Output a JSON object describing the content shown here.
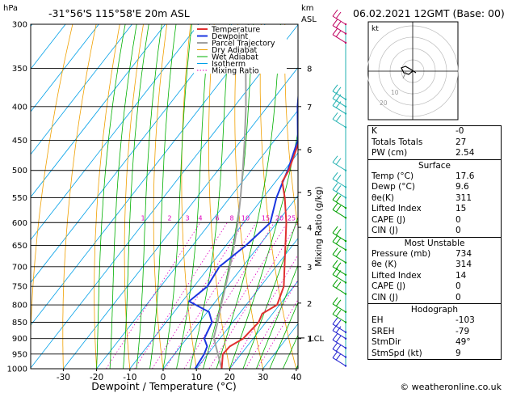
{
  "header": {
    "location": "-31°56'S  115°58'E  20m  ASL",
    "datetime": "06.02.2021  12GMT  (Base: 00)",
    "hpa_label": "hPa",
    "km_label": "km",
    "asl_label": "ASL",
    "copyright": "© weatheronline.co.uk"
  },
  "legend": [
    "Temperature",
    "Dewpoint",
    "Parcel Trajectory",
    "Dry Adiabat",
    "Wet Adiabat",
    "Isotherm",
    "Mixing Ratio"
  ],
  "colors": {
    "temperature": "#e03030",
    "dewpoint": "#1a36e0",
    "parcel": "#a0a0a0",
    "dry_adiabat": "#f0a000",
    "wet_adiabat": "#00b000",
    "isotherm": "#00a0e8",
    "mixing_ratio": "#e000c0",
    "barbs_upper": "#c00060",
    "barbs_mid": "#20b0b0",
    "barbs_low": "#00a000",
    "barbs_lowest": "#2020d0"
  },
  "chart_data": {
    "type": "line",
    "subtype": "skew-t log-p",
    "xlabel": "Dewpoint / Temperature (°C)",
    "ylabel_right": "Mixing Ratio (g/kg)",
    "x_ticks": [
      -30,
      -20,
      -10,
      0,
      10,
      20,
      30,
      40
    ],
    "pressure_levels": [
      300,
      350,
      400,
      450,
      500,
      550,
      600,
      650,
      700,
      750,
      800,
      850,
      900,
      950,
      1000
    ],
    "km_levels": [
      {
        "km": "8",
        "p": 350
      },
      {
        "km": "7",
        "p": 400
      },
      {
        "km": "6",
        "p": 465
      },
      {
        "km": "5",
        "p": 540
      },
      {
        "km": "4",
        "p": 610
      },
      {
        "km": "3",
        "p": 700
      },
      {
        "km": "2",
        "p": 795
      },
      {
        "km": "1",
        "p": 900
      }
    ],
    "lcl_label": "LCL",
    "lcl_pressure": 898,
    "mixing_ratio_labels": [
      "1",
      "2",
      "3",
      "4",
      "6",
      "8",
      "10",
      "15",
      "20",
      "25"
    ],
    "series": [
      {
        "name": "Temperature",
        "points": [
          [
            1000,
            17.6
          ],
          [
            950,
            14.5
          ],
          [
            925,
            14.8
          ],
          [
            900,
            17.0
          ],
          [
            850,
            17.8
          ],
          [
            825,
            16.9
          ],
          [
            800,
            19.3
          ],
          [
            750,
            17.0
          ],
          [
            700,
            12.6
          ],
          [
            650,
            7.9
          ],
          [
            600,
            2.8
          ],
          [
            550,
            -3.5
          ],
          [
            520,
            -8.0
          ],
          [
            500,
            -8.7
          ],
          [
            450,
            -12.5
          ],
          [
            400,
            -19.3
          ],
          [
            350,
            -27.5
          ],
          [
            300,
            -38.0
          ]
        ]
      },
      {
        "name": "Dewpoint",
        "points": [
          [
            1000,
            9.6
          ],
          [
            950,
            8.9
          ],
          [
            925,
            8.0
          ],
          [
            900,
            5.3
          ],
          [
            850,
            3.8
          ],
          [
            820,
            0.5
          ],
          [
            790,
            -8.0
          ],
          [
            750,
            -6.0
          ],
          [
            700,
            -7.0
          ],
          [
            650,
            -4.0
          ],
          [
            600,
            -2.0
          ],
          [
            550,
            -6.0
          ],
          [
            525,
            -7.5
          ],
          [
            500,
            -9.0
          ],
          [
            450,
            -13.0
          ],
          [
            400,
            -21.0
          ],
          [
            350,
            -29.0
          ],
          [
            300,
            -40.0
          ]
        ]
      },
      {
        "name": "Parcel Trajectory",
        "points": [
          [
            1000,
            17.6
          ],
          [
            898,
            8.0
          ],
          [
            850,
            5.5
          ],
          [
            800,
            2.5
          ],
          [
            750,
            -0.5
          ],
          [
            700,
            -3.8
          ],
          [
            650,
            -7.5
          ],
          [
            600,
            -11.8
          ],
          [
            550,
            -16.8
          ],
          [
            500,
            -22.5
          ],
          [
            450,
            -29.0
          ],
          [
            400,
            -36.5
          ],
          [
            350,
            -45.5
          ],
          [
            300,
            -55.0
          ]
        ]
      }
    ]
  },
  "indices": [
    {
      "label": "K",
      "value": "-0"
    },
    {
      "label": "Totals Totals",
      "value": "27"
    },
    {
      "label": "PW (cm)",
      "value": "2.54"
    }
  ],
  "surface": {
    "title": "Surface",
    "rows": [
      {
        "label": "Temp (°C)",
        "value": "17.6"
      },
      {
        "label": "Dewp (°C)",
        "value": "9.6"
      },
      {
        "label": "θe(K)",
        "value": "311"
      },
      {
        "label": "Lifted Index",
        "value": "15"
      },
      {
        "label": "CAPE (J)",
        "value": "0"
      },
      {
        "label": "CIN (J)",
        "value": "0"
      }
    ]
  },
  "most_unstable": {
    "title": "Most Unstable",
    "rows": [
      {
        "label": "Pressure (mb)",
        "value": "734"
      },
      {
        "label": "θe (K)",
        "value": "314"
      },
      {
        "label": "Lifted Index",
        "value": "14"
      },
      {
        "label": "CAPE (J)",
        "value": "0"
      },
      {
        "label": "CIN (J)",
        "value": "0"
      }
    ]
  },
  "hodograph": {
    "title": "Hodograph",
    "kt_label": "kt",
    "ring_labels": [
      "10",
      "20"
    ],
    "rows": [
      {
        "label": "EH",
        "value": "-103"
      },
      {
        "label": "SREH",
        "value": "-79"
      },
      {
        "label": "StmDir",
        "value": "49°"
      },
      {
        "label": "StmSpd (kt)",
        "value": "9"
      }
    ]
  }
}
